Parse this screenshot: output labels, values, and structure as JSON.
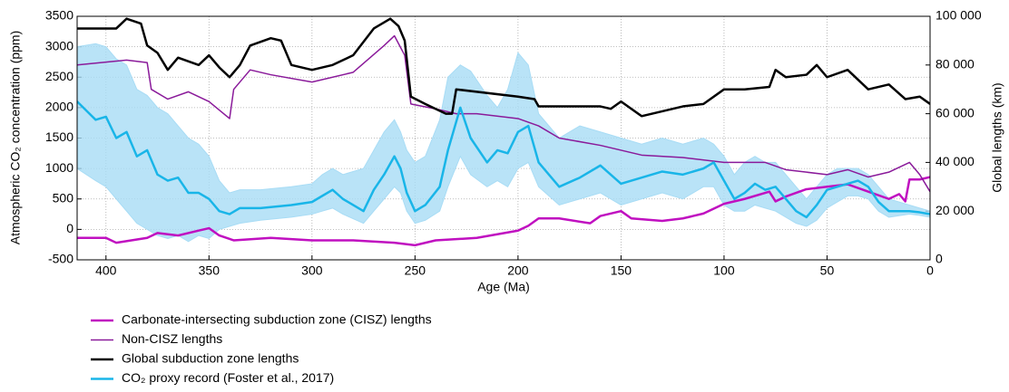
{
  "chart_data": {
    "type": "line",
    "xlabel": "Age (Ma)",
    "ylabel": "Atmospheric CO₂ concentration (ppm)",
    "y2label": "Global lengths (km)",
    "xlim": [
      414,
      0
    ],
    "xticks": [
      400,
      350,
      300,
      250,
      200,
      150,
      100,
      50,
      0
    ],
    "ylim": [
      -500,
      3500
    ],
    "yticks": [
      -500,
      0,
      500,
      1000,
      1500,
      2000,
      2500,
      3000,
      3500
    ],
    "y2lim": [
      0,
      100000
    ],
    "y2ticks": [
      0,
      {
        "value": 20000,
        "label": "20 000"
      },
      {
        "value": 40000,
        "label": "40 000"
      },
      {
        "value": 60000,
        "label": "60 000"
      },
      {
        "value": 80000,
        "label": "80 000"
      },
      {
        "value": 100000,
        "label": "100 000"
      }
    ],
    "grid": true,
    "series": [
      {
        "name": "Carbonate-intersecting subduction zone (CISZ) lengths",
        "color": "#c010c0",
        "width": 2.5,
        "axis": "y2",
        "x": [
          414,
          400,
          395,
          380,
          375,
          365,
          355,
          350,
          345,
          338,
          320,
          300,
          280,
          260,
          250,
          240,
          220,
          200,
          195,
          190,
          180,
          165,
          160,
          150,
          145,
          130,
          120,
          110,
          100,
          90,
          78,
          75,
          70,
          60,
          50,
          40,
          30,
          20,
          15,
          12,
          10,
          5,
          0
        ],
        "values": [
          9000,
          9000,
          7000,
          9000,
          11000,
          10000,
          12000,
          13000,
          10000,
          8000,
          9000,
          8000,
          8000,
          7000,
          6000,
          8000,
          9000,
          12000,
          14000,
          17000,
          17000,
          15000,
          18000,
          20000,
          17000,
          16000,
          17000,
          19000,
          23000,
          25000,
          28000,
          24000,
          26000,
          29000,
          30000,
          31000,
          28000,
          25000,
          27000,
          24000,
          33000,
          33000,
          34000
        ]
      },
      {
        "name": "Non-CISZ lengths",
        "color": "#8a1a9a",
        "width": 1.5,
        "axis": "y2",
        "x": [
          414,
          390,
          380,
          378,
          370,
          360,
          350,
          340,
          338,
          330,
          320,
          300,
          280,
          265,
          260,
          255,
          252,
          240,
          230,
          220,
          200,
          190,
          180,
          160,
          150,
          140,
          120,
          100,
          80,
          70,
          60,
          50,
          40,
          30,
          20,
          10,
          5,
          0
        ],
        "values": [
          80000,
          82000,
          81000,
          70000,
          66000,
          69000,
          65000,
          58000,
          70000,
          78000,
          76000,
          73000,
          77000,
          88000,
          92000,
          84000,
          64000,
          62000,
          60000,
          60000,
          58000,
          55000,
          50000,
          47000,
          45000,
          43000,
          42000,
          40000,
          40000,
          37000,
          36000,
          35000,
          37000,
          34000,
          36000,
          40000,
          35000,
          28000
        ]
      },
      {
        "name": "Global subduction zone lengths",
        "color": "#000000",
        "width": 2.5,
        "axis": "y2",
        "x": [
          414,
          395,
          390,
          383,
          380,
          375,
          370,
          365,
          355,
          350,
          345,
          340,
          335,
          330,
          320,
          315,
          310,
          300,
          290,
          280,
          270,
          262,
          258,
          255,
          252,
          245,
          235,
          232,
          230,
          200,
          192,
          190,
          180,
          160,
          155,
          150,
          140,
          130,
          120,
          110,
          100,
          90,
          78,
          75,
          70,
          60,
          55,
          50,
          40,
          30,
          20,
          12,
          5,
          0
        ],
        "values": [
          95000,
          95000,
          99000,
          97000,
          88000,
          85000,
          78000,
          83000,
          80000,
          84000,
          79000,
          75000,
          80000,
          88000,
          91000,
          90000,
          80000,
          78000,
          80000,
          84000,
          95000,
          99000,
          96000,
          90000,
          67000,
          64000,
          60000,
          60000,
          70000,
          67000,
          66000,
          63000,
          63000,
          63000,
          62000,
          65000,
          59000,
          61000,
          63000,
          64000,
          70000,
          70000,
          71000,
          78000,
          75000,
          76000,
          80000,
          75000,
          78000,
          70000,
          72000,
          66000,
          67000,
          64000
        ]
      },
      {
        "name": "CO₂ proxy record (Foster et al., 2017)",
        "color": "#19b5e8",
        "width": 2.5,
        "x": [
          414,
          405,
          400,
          395,
          390,
          385,
          380,
          375,
          370,
          365,
          360,
          355,
          350,
          345,
          340,
          335,
          325,
          310,
          300,
          295,
          290,
          285,
          275,
          270,
          265,
          260,
          257,
          254,
          250,
          245,
          238,
          234,
          228,
          223,
          215,
          210,
          205,
          200,
          195,
          190,
          180,
          170,
          160,
          150,
          140,
          130,
          120,
          110,
          105,
          100,
          95,
          90,
          85,
          80,
          75,
          65,
          60,
          55,
          50,
          45,
          40,
          35,
          30,
          25,
          20,
          10,
          5,
          0
        ],
        "values": [
          2100,
          1800,
          1850,
          1500,
          1600,
          1200,
          1300,
          900,
          800,
          850,
          600,
          600,
          500,
          300,
          250,
          350,
          350,
          400,
          450,
          550,
          650,
          500,
          300,
          650,
          900,
          1200,
          1000,
          600,
          300,
          400,
          700,
          1300,
          2000,
          1500,
          1100,
          1300,
          1250,
          1600,
          1700,
          1100,
          700,
          850,
          1050,
          750,
          850,
          950,
          900,
          1000,
          1100,
          800,
          500,
          600,
          750,
          650,
          700,
          300,
          200,
          400,
          650,
          700,
          750,
          800,
          700,
          450,
          300,
          300,
          280,
          250
        ],
        "band": {
          "color": "#a8dcf5",
          "lower": [
            1000,
            800,
            700,
            500,
            300,
            100,
            0,
            -100,
            -150,
            -100,
            -200,
            -100,
            -150,
            0,
            50,
            100,
            150,
            200,
            250,
            300,
            350,
            250,
            100,
            300,
            500,
            700,
            600,
            300,
            100,
            150,
            300,
            700,
            1200,
            900,
            700,
            800,
            700,
            1000,
            1100,
            700,
            400,
            500,
            600,
            400,
            500,
            600,
            500,
            700,
            700,
            400,
            300,
            300,
            400,
            350,
            300,
            100,
            50,
            150,
            350,
            450,
            550,
            550,
            500,
            300,
            200,
            250,
            230,
            200
          ],
          "upper": [
            3000,
            3050,
            3000,
            2800,
            2700,
            2300,
            2200,
            2000,
            1900,
            1700,
            1500,
            1400,
            1200,
            800,
            600,
            650,
            650,
            700,
            750,
            900,
            1000,
            900,
            1000,
            1300,
            1600,
            1800,
            1600,
            1300,
            1100,
            1200,
            1800,
            2500,
            2700,
            2600,
            2200,
            2000,
            2300,
            2900,
            2700,
            1900,
            1500,
            1700,
            1600,
            1500,
            1400,
            1500,
            1400,
            1500,
            1400,
            1200,
            900,
            1100,
            1200,
            1100,
            1100,
            700,
            500,
            700,
            900,
            1000,
            1000,
            1000,
            900,
            700,
            500,
            400,
            350,
            300
          ]
        }
      }
    ]
  }
}
